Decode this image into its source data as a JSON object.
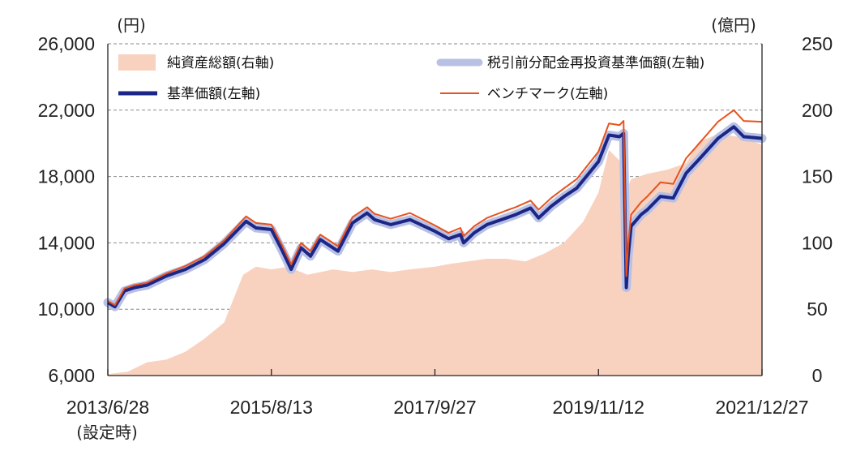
{
  "chart_data": {
    "type": "line",
    "left_axis_unit": "(円)",
    "right_axis_unit": "(億円)",
    "left_ticks": [
      "26,000",
      "22,000",
      "18,000",
      "14,000",
      "10,000",
      "6,000"
    ],
    "right_ticks": [
      "250",
      "200",
      "150",
      "100",
      "50",
      "0"
    ],
    "ylim_left": [
      6000,
      26000
    ],
    "ylim_right": [
      0,
      250
    ],
    "x_ticks": [
      "2013/6/28",
      "2015/8/13",
      "2017/9/27",
      "2019/11/12",
      "2021/12/27"
    ],
    "x_tick_note": "(設定時)",
    "xlim": [
      "2013-06-28",
      "2021-12-27"
    ],
    "grid": "horizontal-dashed",
    "legend_position": "top",
    "colors": {
      "nav_total": "#f8d2bf",
      "reinvested_nav": "#b8c0e4",
      "base_nav": "#1c2686",
      "benchmark": "#e8521e"
    },
    "series": [
      {
        "name": "純資産総額(右軸)",
        "axis": "right",
        "style": "area",
        "x": [
          "2013-06-28",
          "2013-10-01",
          "2014-01-01",
          "2014-04-01",
          "2014-07-01",
          "2014-10-01",
          "2015-01-01",
          "2015-04-01",
          "2015-06-01",
          "2015-08-13",
          "2015-11-01",
          "2016-02-01",
          "2016-06-01",
          "2016-09-01",
          "2016-12-01",
          "2017-03-01",
          "2017-06-01",
          "2017-09-27",
          "2017-12-01",
          "2018-03-01",
          "2018-06-01",
          "2018-09-01",
          "2018-12-01",
          "2019-03-01",
          "2019-06-01",
          "2019-09-01",
          "2019-11-12",
          "2020-01-01",
          "2020-02-20",
          "2020-03-10",
          "2020-03-23",
          "2020-04-15",
          "2020-07-01",
          "2020-10-01",
          "2021-01-01",
          "2021-03-01",
          "2021-06-01",
          "2021-09-01",
          "2021-12-27"
        ],
        "values": [
          1,
          3,
          10,
          12,
          18,
          28,
          40,
          76,
          82,
          80,
          82,
          76,
          80,
          78,
          80,
          78,
          80,
          82,
          84,
          86,
          88,
          88,
          86,
          92,
          100,
          116,
          138,
          170,
          162,
          155,
          140,
          148,
          152,
          155,
          160,
          176,
          182,
          180,
          174
        ]
      },
      {
        "name": "税引前分配金再投資基準価額(左軸)",
        "axis": "left",
        "style": "band",
        "x": [
          "2013-06-28",
          "2013-08-01",
          "2013-09-15",
          "2013-11-01",
          "2014-01-01",
          "2014-04-01",
          "2014-07-01",
          "2014-10-01",
          "2015-01-01",
          "2015-04-15",
          "2015-06-01",
          "2015-08-13",
          "2015-10-01",
          "2015-11-15",
          "2016-01-01",
          "2016-02-15",
          "2016-04-01",
          "2016-06-24",
          "2016-09-01",
          "2016-11-09",
          "2016-12-15",
          "2017-03-01",
          "2017-06-01",
          "2017-09-27",
          "2017-12-01",
          "2018-01-26",
          "2018-02-10",
          "2018-04-01",
          "2018-06-01",
          "2018-09-01",
          "2018-10-15",
          "2018-12-25",
          "2019-02-01",
          "2019-04-01",
          "2019-06-03",
          "2019-08-01",
          "2019-11-12",
          "2020-01-01",
          "2020-02-20",
          "2020-03-10",
          "2020-03-23",
          "2020-04-01",
          "2020-04-15",
          "2020-06-01",
          "2020-07-01",
          "2020-09-01",
          "2020-11-01",
          "2021-01-01",
          "2021-03-01",
          "2021-06-01",
          "2021-08-15",
          "2021-10-01",
          "2021-12-27"
        ],
        "values": [
          10400,
          10150,
          11100,
          11300,
          11450,
          12000,
          12400,
          13000,
          13950,
          15300,
          14900,
          14800,
          13600,
          12400,
          13700,
          13200,
          14200,
          13500,
          15200,
          15800,
          15400,
          15100,
          15400,
          14700,
          14250,
          14500,
          14000,
          14600,
          15100,
          15500,
          15700,
          16100,
          15500,
          16200,
          16800,
          17300,
          18900,
          20500,
          20400,
          20600,
          11300,
          13200,
          15000,
          15700,
          16000,
          16800,
          16700,
          18200,
          19000,
          20300,
          21000,
          20400,
          20300
        ]
      },
      {
        "name": "基準価額(左軸)",
        "axis": "left",
        "style": "line",
        "x": [
          "2013-06-28",
          "2013-08-01",
          "2013-09-15",
          "2013-11-01",
          "2014-01-01",
          "2014-04-01",
          "2014-07-01",
          "2014-10-01",
          "2015-01-01",
          "2015-04-15",
          "2015-06-01",
          "2015-08-13",
          "2015-10-01",
          "2015-11-15",
          "2016-01-01",
          "2016-02-15",
          "2016-04-01",
          "2016-06-24",
          "2016-09-01",
          "2016-11-09",
          "2016-12-15",
          "2017-03-01",
          "2017-06-01",
          "2017-09-27",
          "2017-12-01",
          "2018-01-26",
          "2018-02-10",
          "2018-04-01",
          "2018-06-01",
          "2018-09-01",
          "2018-10-15",
          "2018-12-25",
          "2019-02-01",
          "2019-04-01",
          "2019-06-03",
          "2019-08-01",
          "2019-11-12",
          "2020-01-01",
          "2020-02-20",
          "2020-03-10",
          "2020-03-23",
          "2020-04-01",
          "2020-04-15",
          "2020-06-01",
          "2020-07-01",
          "2020-09-01",
          "2020-11-01",
          "2021-01-01",
          "2021-03-01",
          "2021-06-01",
          "2021-08-15",
          "2021-10-01",
          "2021-12-27"
        ],
        "values": [
          10400,
          10150,
          11100,
          11300,
          11450,
          12000,
          12400,
          13000,
          13950,
          15300,
          14900,
          14800,
          13600,
          12400,
          13700,
          13200,
          14200,
          13500,
          15200,
          15800,
          15400,
          15100,
          15400,
          14700,
          14250,
          14500,
          14000,
          14600,
          15100,
          15500,
          15700,
          16100,
          15500,
          16200,
          16800,
          17300,
          18900,
          20500,
          20400,
          20600,
          11300,
          13200,
          15000,
          15700,
          16000,
          16800,
          16700,
          18200,
          19000,
          20300,
          21000,
          20400,
          20300
        ]
      },
      {
        "name": "ベンチマーク(左軸)",
        "axis": "left",
        "style": "line",
        "x": [
          "2013-06-28",
          "2013-08-01",
          "2013-09-15",
          "2013-11-01",
          "2014-01-01",
          "2014-04-01",
          "2014-07-01",
          "2014-10-01",
          "2015-01-01",
          "2015-04-15",
          "2015-06-01",
          "2015-08-13",
          "2015-10-01",
          "2015-11-15",
          "2016-01-01",
          "2016-02-15",
          "2016-04-01",
          "2016-06-24",
          "2016-09-01",
          "2016-11-09",
          "2016-12-15",
          "2017-03-01",
          "2017-06-01",
          "2017-09-27",
          "2017-12-01",
          "2018-01-26",
          "2018-02-10",
          "2018-04-01",
          "2018-06-01",
          "2018-09-01",
          "2018-10-15",
          "2018-12-25",
          "2019-02-01",
          "2019-04-01",
          "2019-06-03",
          "2019-08-01",
          "2019-11-12",
          "2020-01-01",
          "2020-02-20",
          "2020-03-10",
          "2020-03-23",
          "2020-04-01",
          "2020-04-15",
          "2020-06-01",
          "2020-07-01",
          "2020-09-01",
          "2020-11-01",
          "2021-01-01",
          "2021-03-01",
          "2021-06-01",
          "2021-08-15",
          "2021-10-01",
          "2021-12-27"
        ],
        "values": [
          10500,
          10250,
          11250,
          11450,
          11600,
          12150,
          12600,
          13200,
          14150,
          15600,
          15200,
          15100,
          13900,
          12700,
          14000,
          13500,
          14500,
          13800,
          15550,
          16150,
          15750,
          15450,
          15800,
          15050,
          14600,
          14900,
          14400,
          15000,
          15500,
          15950,
          16150,
          16550,
          16000,
          16700,
          17300,
          17850,
          19500,
          21200,
          21100,
          21350,
          12000,
          13900,
          15700,
          16450,
          16800,
          17650,
          17550,
          19100,
          19950,
          21300,
          22000,
          21350,
          21300
        ]
      }
    ]
  }
}
